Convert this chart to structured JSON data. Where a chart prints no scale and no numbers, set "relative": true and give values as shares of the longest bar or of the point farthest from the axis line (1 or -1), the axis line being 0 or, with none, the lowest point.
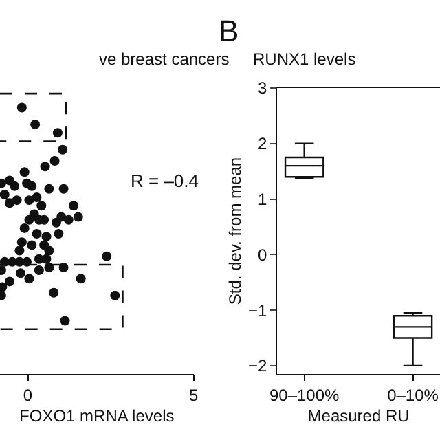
{
  "chart_data": [
    {
      "type": "scatter",
      "title": "ve breast cancers",
      "xlabel": "FOXO1 mRNA levels",
      "relative": true,
      "xlim": [
        -0.84,
        5
      ],
      "xticks": [
        0,
        5
      ],
      "marker": "circle",
      "tick_labels": "x",
      "annotations": [
        "R = –0.4"
      ],
      "x": [
        -0.18,
        0.22,
        0.9,
        1.05,
        0.52,
        0.81,
        -0.1,
        -0.55,
        -0.8,
        -0.7,
        -0.4,
        -0.03,
        0.12,
        0.64,
        1.08,
        -0.55,
        -0.33,
        0.04,
        0.27,
        0.41,
        0.19,
        0.34,
        0.49,
        0.04,
        1.38,
        1.52,
        1.01,
        0.86,
        1.23,
        -0.1,
        0.27,
        0.56,
        0.93,
        -0.18,
        0.12,
        -0.25,
        0.49,
        0.64,
        -0.7,
        -0.47,
        -0.25,
        -0.03,
        0.34,
        0.56,
        -0.55,
        -0.22,
        0.04,
        0.34,
        0.64,
        1.08,
        1.6,
        2.38,
        -0.8,
        0.78,
        2.63,
        1.12,
        -0.8,
        -0.77
      ],
      "series": [
        {
          "color": "#111111",
          "values": [
            0.95,
            0.89,
            0.86,
            0.8,
            0.74,
            0.76,
            0.72,
            0.69,
            0.68,
            0.64,
            0.67,
            0.68,
            0.67,
            0.66,
            0.66,
            0.61,
            0.62,
            0.62,
            0.63,
            0.6,
            0.57,
            0.55,
            0.55,
            0.55,
            0.6,
            0.56,
            0.56,
            0.54,
            0.55,
            0.52,
            0.5,
            0.49,
            0.5,
            0.47,
            0.46,
            0.44,
            0.46,
            0.44,
            0.4,
            0.4,
            0.4,
            0.4,
            0.41,
            0.41,
            0.33,
            0.36,
            0.34,
            0.37,
            0.38,
            0.38,
            0.34,
            0.42,
            0.37,
            0.29,
            0.28,
            0.19,
            0.28,
            0.31
          ]
        },
        {
          "type": "line",
          "marker": "none",
          "color": "#111111",
          "line_style": "dashed",
          "x": [
            -0.84,
            1.15,
            1.15,
            -0.84
          ],
          "values": [
            1,
            1,
            0.83,
            0.83
          ]
        },
        {
          "type": "line",
          "marker": "none",
          "color": "#111111",
          "line_style": "dashed",
          "x": [
            -0.84,
            2.86,
            2.86,
            -0.84
          ],
          "values": [
            0.39,
            0.39,
            0.16,
            0.16
          ]
        }
      ]
    },
    {
      "type": "box",
      "title": "RUNX1 levels",
      "xlabel": "Measured RU",
      "ylabel": "Std. dev. from mean",
      "annotations": [
        "B"
      ],
      "ylim": [
        -2.15,
        3
      ],
      "yticks": [
        -2,
        -1,
        0,
        1,
        2,
        3
      ],
      "categories": [
        "90–100%",
        "0–10%"
      ],
      "boxes": [
        {
          "low": 1.38,
          "q1": 1.4,
          "median": 1.6,
          "q3": 1.75,
          "high": 2.0
        },
        {
          "low": -2.0,
          "q1": -1.5,
          "median": -1.3,
          "q3": -1.1,
          "high": -1.05
        }
      ]
    }
  ]
}
